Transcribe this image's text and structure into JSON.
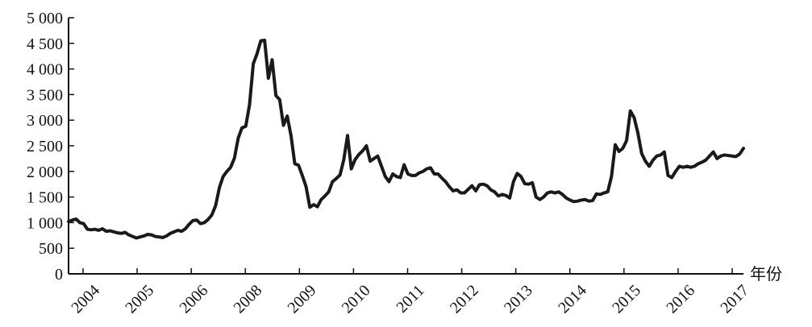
{
  "chart_data": {
    "type": "line",
    "title": "",
    "xlabel": "年份",
    "ylabel": "",
    "ylim": [
      0,
      5000
    ],
    "grid": false,
    "legend": "none",
    "y_ticks": [
      0,
      500,
      1000,
      1500,
      2000,
      2500,
      3000,
      3500,
      4000,
      4500,
      5000
    ],
    "y_tick_labels": [
      "0",
      "500",
      "1 000",
      "1 500",
      "2 000",
      "2 500",
      "3 000",
      "3 500",
      "4 000",
      "4 500",
      "5 000"
    ],
    "x_tick_labels": [
      "2004",
      "2005",
      "2006",
      "2008",
      "2009",
      "2010",
      "2011",
      "2012",
      "2013",
      "2014",
      "2015",
      "2016",
      "2017"
    ],
    "line_color": "#1a1a1a",
    "series": [
      {
        "values": [
          1020,
          1050,
          1070,
          1000,
          980,
          870,
          860,
          870,
          850,
          880,
          830,
          840,
          820,
          800,
          790,
          810,
          760,
          730,
          700,
          720,
          740,
          770,
          760,
          730,
          720,
          710,
          740,
          790,
          820,
          850,
          830,
          880,
          970,
          1040,
          1050,
          980,
          1000,
          1060,
          1150,
          1330,
          1680,
          1900,
          2000,
          2080,
          2260,
          2650,
          2850,
          2880,
          3300,
          4100,
          4300,
          4550,
          4560,
          3820,
          4180,
          3480,
          3400,
          2900,
          3080,
          2700,
          2150,
          2120,
          1920,
          1700,
          1300,
          1350,
          1310,
          1450,
          1520,
          1600,
          1800,
          1860,
          1930,
          2230,
          2700,
          2050,
          2230,
          2330,
          2400,
          2500,
          2200,
          2250,
          2300,
          2100,
          1900,
          1800,
          1950,
          1900,
          1880,
          2130,
          1950,
          1920,
          1920,
          1970,
          2000,
          2050,
          2070,
          1950,
          1950,
          1870,
          1800,
          1700,
          1620,
          1640,
          1580,
          1580,
          1650,
          1720,
          1620,
          1740,
          1750,
          1720,
          1640,
          1600,
          1520,
          1550,
          1530,
          1480,
          1800,
          1960,
          1900,
          1760,
          1750,
          1780,
          1500,
          1450,
          1500,
          1580,
          1600,
          1580,
          1600,
          1550,
          1480,
          1440,
          1410,
          1420,
          1440,
          1450,
          1420,
          1430,
          1560,
          1550,
          1580,
          1600,
          1900,
          2520,
          2390,
          2450,
          2600,
          3180,
          3050,
          2750,
          2350,
          2200,
          2100,
          2220,
          2300,
          2320,
          2380,
          1920,
          1880,
          2000,
          2100,
          2080,
          2100,
          2080,
          2100,
          2150,
          2180,
          2220,
          2300,
          2380,
          2250,
          2300,
          2320,
          2310,
          2300,
          2290,
          2340,
          2450
        ]
      }
    ]
  }
}
